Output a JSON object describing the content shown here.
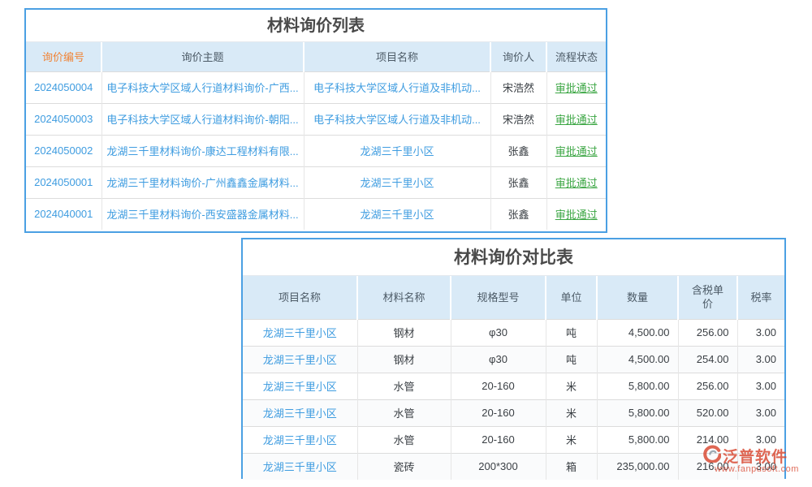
{
  "colors": {
    "border-blue": "#4BA0E3",
    "header-bg": "#D9EAF7",
    "accent-orange": "#F08437",
    "link-blue": "#3E9CE0",
    "status-green": "#3BA643",
    "brand-red": "#D8462F"
  },
  "inquiry_list": {
    "title": "材料询价列表",
    "columns": [
      "询价编号",
      "询价主题",
      "项目名称",
      "询价人",
      "流程状态"
    ],
    "rows": [
      [
        "2024050004",
        "电子科技大学区域人行道材料询价-广西...",
        "电子科技大学区域人行道及非机动...",
        "宋浩然",
        "审批通过"
      ],
      [
        "2024050003",
        "电子科技大学区域人行道材料询价-朝阳...",
        "电子科技大学区域人行道及非机动...",
        "宋浩然",
        "审批通过"
      ],
      [
        "2024050002",
        "龙湖三千里材料询价-康达工程材料有限...",
        "龙湖三千里小区",
        "张鑫",
        "审批通过"
      ],
      [
        "2024050001",
        "龙湖三千里材料询价-广州鑫鑫金属材料...",
        "龙湖三千里小区",
        "张鑫",
        "审批通过"
      ],
      [
        "2024040001",
        "龙湖三千里材料询价-西安盛器金属材料...",
        "龙湖三千里小区",
        "张鑫",
        "审批通过"
      ]
    ]
  },
  "comparison": {
    "title": "材料询价对比表",
    "columns": [
      "项目名称",
      "材料名称",
      "规格型号",
      "单位",
      "数量",
      "含税单价",
      "税率"
    ],
    "rows": [
      [
        "龙湖三千里小区",
        "钢材",
        "φ30",
        "吨",
        "4,500.00",
        "256.00",
        "3.00"
      ],
      [
        "龙湖三千里小区",
        "钢材",
        "φ30",
        "吨",
        "4,500.00",
        "254.00",
        "3.00"
      ],
      [
        "龙湖三千里小区",
        "水管",
        "20-160",
        "米",
        "5,800.00",
        "256.00",
        "3.00"
      ],
      [
        "龙湖三千里小区",
        "水管",
        "20-160",
        "米",
        "5,800.00",
        "520.00",
        "3.00"
      ],
      [
        "龙湖三千里小区",
        "水管",
        "20-160",
        "米",
        "5,800.00",
        "214.00",
        "3.00"
      ],
      [
        "龙湖三千里小区",
        "瓷砖",
        "200*300",
        "箱",
        "235,000.00",
        "216.00",
        "3.00"
      ]
    ]
  },
  "watermark": {
    "brand": "泛普软件",
    "url": "www.fanpusoft.com"
  }
}
